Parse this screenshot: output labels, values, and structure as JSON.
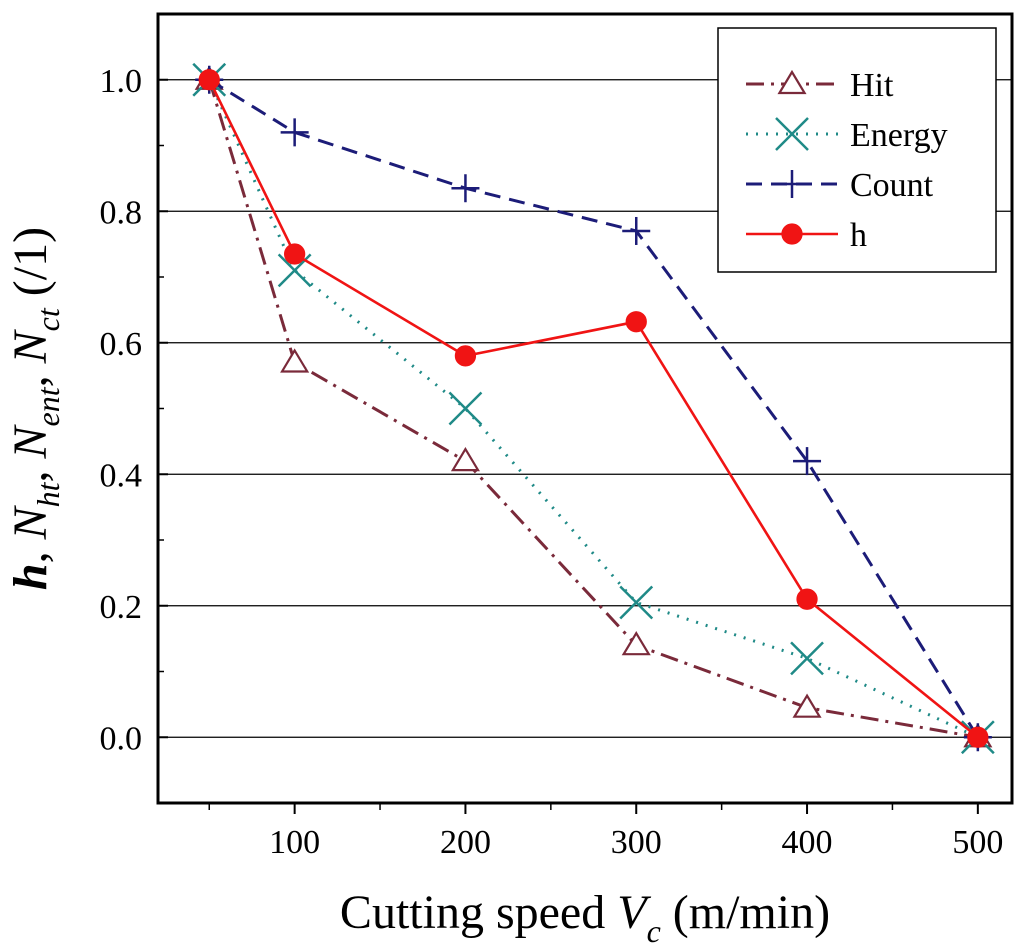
{
  "chart_data": {
    "type": "line",
    "xlabel": {
      "main": "Cutting speed ",
      "var": "V",
      "sub": "c",
      "unit": " (m/min)"
    },
    "ylabel": {
      "parts": [
        {
          "text": "h",
          "style": "bolditalic"
        },
        {
          "text": ", ",
          "style": "normal"
        },
        {
          "text": "N",
          "style": "italic"
        },
        {
          "text": "ht",
          "style": "sub"
        },
        {
          "text": ", ",
          "style": "normal"
        },
        {
          "text": "N",
          "style": "italic"
        },
        {
          "text": "ent",
          "style": "sub"
        },
        {
          "text": ", ",
          "style": "normal"
        },
        {
          "text": "N",
          "style": "italic"
        },
        {
          "text": "ct",
          "style": "sub"
        },
        {
          "text": " (/1)",
          "style": "normal"
        }
      ]
    },
    "xlim": [
      20,
      520
    ],
    "ylim": [
      -0.1,
      1.1
    ],
    "xticks": [
      100,
      200,
      300,
      400,
      500
    ],
    "xtick_labels": [
      "100",
      "200",
      "300",
      "400",
      "500"
    ],
    "yticks": [
      0.0,
      0.2,
      0.4,
      0.6,
      0.8,
      1.0
    ],
    "ytick_labels": [
      "0.0",
      "0.2",
      "0.4",
      "0.6",
      "0.8",
      "1.0"
    ],
    "grid": "horizontal",
    "legend_position": "top-right",
    "x": [
      50,
      100,
      200,
      300,
      400,
      500
    ],
    "series": [
      {
        "name": "Hit",
        "values": [
          1.0,
          0.57,
          0.42,
          0.14,
          0.045,
          0.0
        ],
        "color": "#7a2a3a",
        "marker": "triangle",
        "dash": "18 7 3 7"
      },
      {
        "name": "Energy",
        "values": [
          1.0,
          0.71,
          0.5,
          0.205,
          0.12,
          0.0
        ],
        "color": "#1f8a87",
        "marker": "x",
        "dash": "2 8"
      },
      {
        "name": "Count",
        "values": [
          1.0,
          0.92,
          0.835,
          0.77,
          0.42,
          0.0
        ],
        "color": "#1c1c78",
        "marker": "plus",
        "dash": "16 9"
      },
      {
        "name": "h",
        "values": [
          1.0,
          0.735,
          0.58,
          0.632,
          0.21,
          0.0
        ],
        "color": "#f01414",
        "marker": "circle",
        "dash": ""
      }
    ]
  }
}
